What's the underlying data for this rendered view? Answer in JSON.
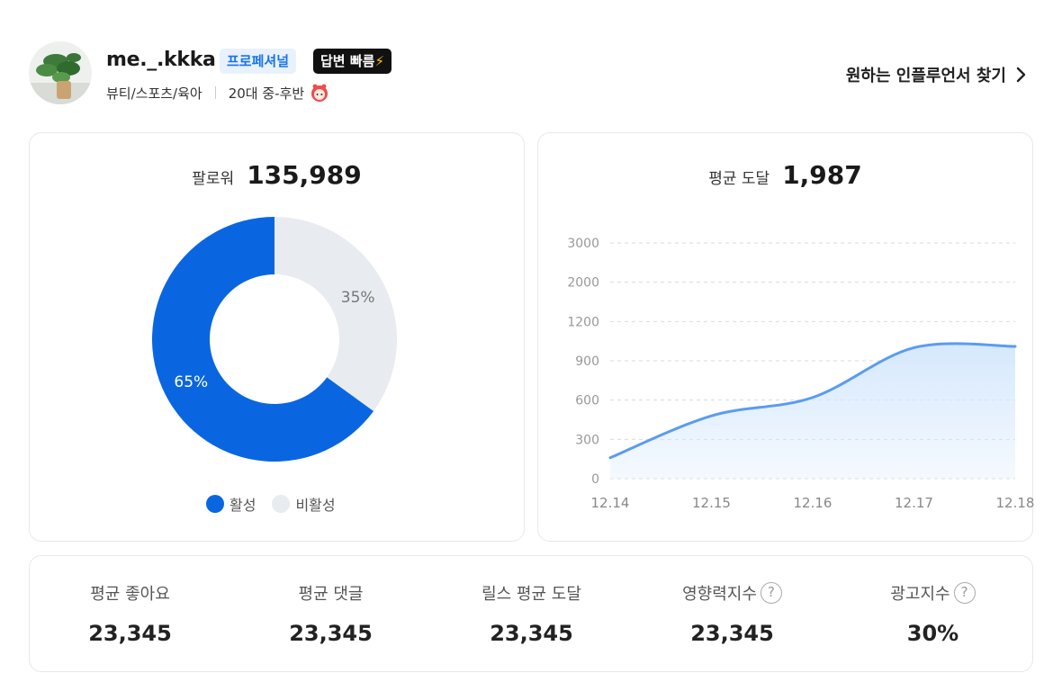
{
  "profile": {
    "username": "me._.kkka",
    "badge_pro": "프로페셔널",
    "badge_fast": "답변 빠름",
    "categories": "뷰티/스포츠/육아",
    "age": "20대 중-후반",
    "find_link": "원하는 인플루언서 찾기",
    "icons": {
      "avatar": "plant-avatar",
      "gender": "female-face-icon",
      "bolt": "lightning-icon",
      "chevron": "chevron-right-icon"
    },
    "colors": {
      "pro_bg": "#e8f1fc",
      "pro_text": "#1a73e8",
      "fast_bg": "#111111",
      "bolt": "#ffc400",
      "gender": "#f04a4a"
    }
  },
  "followers": {
    "label": "팔로워",
    "value": "135,989",
    "legend_active": "활성",
    "legend_inactive": "비활성",
    "active_color": "#0a66e0",
    "inactive_color": "#e8ebef"
  },
  "reach": {
    "label": "평균 도달",
    "value": "1,987",
    "line_color": "#5a9cf0",
    "fill_color": "#d6e8fd"
  },
  "chart_data": [
    {
      "type": "pie",
      "categories": [
        "활성",
        "비활성"
      ],
      "values": [
        65,
        35
      ],
      "labels": [
        "65%",
        "35%"
      ],
      "donut": true
    },
    {
      "type": "area",
      "x": [
        "12.14",
        "12.15",
        "12.16",
        "12.17",
        "12.18"
      ],
      "y_ticks": [
        0,
        300,
        600,
        900,
        1200,
        2000,
        3000
      ],
      "values": [
        160,
        480,
        620,
        1000,
        1010
      ],
      "grid": true
    }
  ],
  "stats": [
    {
      "label": "평균 좋아요",
      "value": "23,345",
      "help": false
    },
    {
      "label": "평균 댓글",
      "value": "23,345",
      "help": false
    },
    {
      "label": "릴스 평균 도달",
      "value": "23,345",
      "help": false
    },
    {
      "label": "영향력지수",
      "value": "23,345",
      "help": true
    },
    {
      "label": "광고지수",
      "value": "30%",
      "help": true
    }
  ],
  "help_glyph": "?"
}
